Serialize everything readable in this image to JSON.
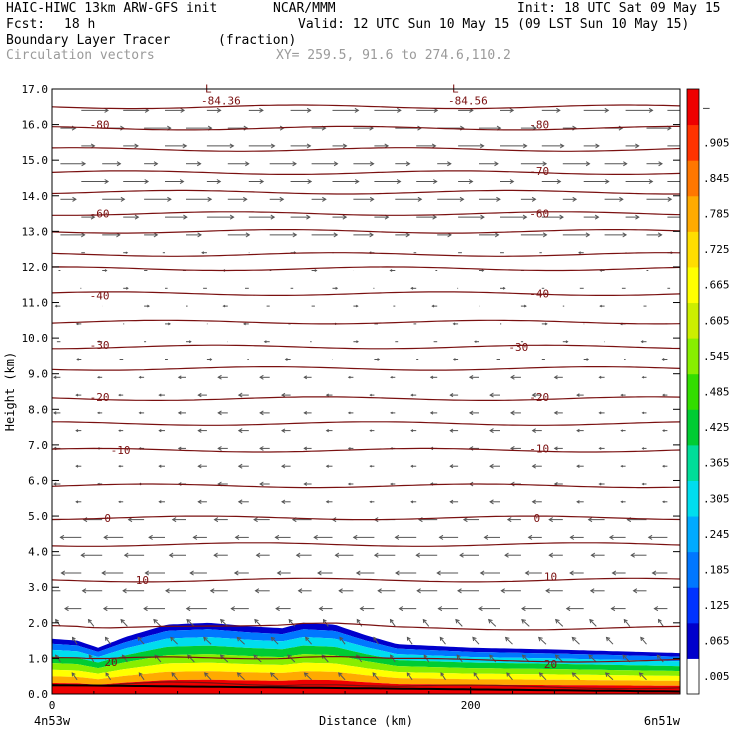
{
  "header": {
    "model": "HAIC-HIWC 13km ARW-GFS init",
    "org": "NCAR/MMM",
    "init": "Init: 18 UTC Sat 09 May 15",
    "fcst_label": "Fcst:",
    "fcst_value": "18 h",
    "valid": "Valid: 12 UTC Sun 10 May 15 (09 LST Sun 10 May 15)",
    "field1_name": "Boundary Layer Tracer",
    "field1_units": "(fraction)",
    "field2_name": "Circulation vectors",
    "xy": "XY= 259.5, 91.6 to 274.6,110.2"
  },
  "chart_data": {
    "type": "heatmap",
    "overlay": "temperature contours and circulation vectors",
    "xlabel": "Distance (km)",
    "ylabel": "Height (km)",
    "xlim": [
      0,
      300
    ],
    "ylim": [
      0,
      17
    ],
    "x_ticks": [
      {
        "value": 0,
        "label": "0"
      },
      {
        "value": 200,
        "label": "200"
      }
    ],
    "x_endpoints": {
      "left": "4n53w",
      "right": "6n51w"
    },
    "y_ticks": [
      {
        "value": 0,
        "label": "0.0"
      },
      {
        "value": 1,
        "label": "1.0"
      },
      {
        "value": 2,
        "label": "2.0"
      },
      {
        "value": 3,
        "label": "3.0"
      },
      {
        "value": 4,
        "label": "4.0"
      },
      {
        "value": 5,
        "label": "5.0"
      },
      {
        "value": 6,
        "label": "6.0"
      },
      {
        "value": 7,
        "label": "7.0"
      },
      {
        "value": 8,
        "label": "8.0"
      },
      {
        "value": 9,
        "label": "9.0"
      },
      {
        "value": 10,
        "label": "10.0"
      },
      {
        "value": 11,
        "label": "11.0"
      },
      {
        "value": 12,
        "label": "12.0"
      },
      {
        "value": 13,
        "label": "13.0"
      },
      {
        "value": 14,
        "label": "14.0"
      },
      {
        "value": 15,
        "label": "15.0"
      },
      {
        "value": 16,
        "label": "16.0"
      },
      {
        "value": 17,
        "label": "17.0"
      }
    ],
    "colorbar": {
      "labels": [
        {
          "value": 0.005,
          "label": ".005"
        },
        {
          "value": 0.065,
          "label": ".065"
        },
        {
          "value": 0.125,
          "label": ".125"
        },
        {
          "value": 0.185,
          "label": ".185"
        },
        {
          "value": 0.245,
          "label": ".245"
        },
        {
          "value": 0.305,
          "label": ".305"
        },
        {
          "value": 0.365,
          "label": ".365"
        },
        {
          "value": 0.425,
          "label": ".425"
        },
        {
          "value": 0.485,
          "label": ".485"
        },
        {
          "value": 0.545,
          "label": ".545"
        },
        {
          "value": 0.605,
          "label": ".605"
        },
        {
          "value": 0.665,
          "label": ".665"
        },
        {
          "value": 0.725,
          "label": ".725"
        },
        {
          "value": 0.785,
          "label": ".785"
        },
        {
          "value": 0.845,
          "label": ".845"
        },
        {
          "value": 0.905,
          "label": ".905"
        },
        {
          "value": 1.0,
          "label": "–"
        }
      ],
      "colors": [
        "#ffffff",
        "#0000cc",
        "#0033ff",
        "#0077ff",
        "#00aaff",
        "#00ddee",
        "#00dd99",
        "#00cc33",
        "#33dd00",
        "#88ee00",
        "#ccee00",
        "#ffff00",
        "#ffdd00",
        "#ffaa00",
        "#ff7700",
        "#ff3300",
        "#ee0000"
      ]
    },
    "boundary_layer_top": [
      {
        "x": 0,
        "z": 1.55
      },
      {
        "x": 12,
        "z": 1.5
      },
      {
        "x": 22,
        "z": 1.3
      },
      {
        "x": 35,
        "z": 1.6
      },
      {
        "x": 55,
        "z": 1.95
      },
      {
        "x": 75,
        "z": 2.0
      },
      {
        "x": 95,
        "z": 1.9
      },
      {
        "x": 110,
        "z": 1.85
      },
      {
        "x": 120,
        "z": 2.0
      },
      {
        "x": 135,
        "z": 1.95
      },
      {
        "x": 150,
        "z": 1.65
      },
      {
        "x": 165,
        "z": 1.4
      },
      {
        "x": 200,
        "z": 1.3
      },
      {
        "x": 240,
        "z": 1.25
      },
      {
        "x": 300,
        "z": 1.15
      }
    ],
    "contour_levels_z": [
      0.2,
      0.95,
      1.85,
      3.2,
      4.2,
      4.95,
      5.85,
      6.85,
      7.6,
      8.3,
      9.15,
      9.75,
      10.45,
      11.25,
      11.95,
      12.35,
      13.0,
      13.5,
      14.1,
      14.65,
      15.3,
      15.9,
      16.5
    ],
    "contour_labels": [
      {
        "x": 25,
        "z": 0.9,
        "label": "20"
      },
      {
        "x": 235,
        "z": 0.85,
        "label": "20"
      },
      {
        "x": 40,
        "z": 3.2,
        "label": "10"
      },
      {
        "x": 235,
        "z": 3.3,
        "label": "10"
      },
      {
        "x": 25,
        "z": 4.95,
        "label": "0"
      },
      {
        "x": 230,
        "z": 4.95,
        "label": "0"
      },
      {
        "x": 28,
        "z": 6.85,
        "label": "-10"
      },
      {
        "x": 228,
        "z": 6.9,
        "label": "-10"
      },
      {
        "x": 18,
        "z": 8.35,
        "label": "-20"
      },
      {
        "x": 228,
        "z": 8.35,
        "label": "-20"
      },
      {
        "x": 18,
        "z": 9.8,
        "label": "-30"
      },
      {
        "x": 218,
        "z": 9.75,
        "label": "-30"
      },
      {
        "x": 18,
        "z": 11.2,
        "label": "-40"
      },
      {
        "x": 228,
        "z": 11.25,
        "label": "-40"
      },
      {
        "x": 18,
        "z": 13.5,
        "label": "-60"
      },
      {
        "x": 228,
        "z": 13.5,
        "label": "-60"
      },
      {
        "x": 228,
        "z": 14.7,
        "label": "-70"
      },
      {
        "x": 18,
        "z": 16.0,
        "label": "-80"
      },
      {
        "x": 228,
        "z": 16.0,
        "label": "-80"
      }
    ],
    "low_markers": [
      {
        "x": 75,
        "z": 16.9,
        "label": "L",
        "value": "-84.36"
      },
      {
        "x": 193,
        "z": 16.9,
        "label": "L",
        "value": "-84.56"
      }
    ]
  },
  "colors": {
    "contour": "#7a1010",
    "vector": "#555555",
    "header_gray": "#9a9a9a"
  }
}
